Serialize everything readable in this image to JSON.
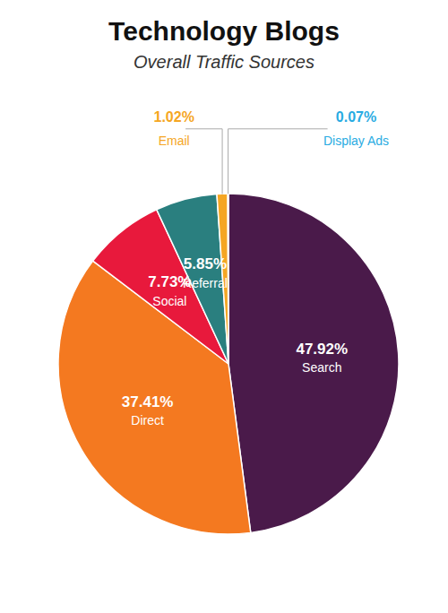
{
  "chart_data": {
    "type": "pie",
    "title": "Technology Blogs",
    "subtitle": "Overall Traffic Sources",
    "categories": [
      "Search",
      "Direct",
      "Social",
      "Referral",
      "Email",
      "Display Ads"
    ],
    "values": [
      47.92,
      37.41,
      7.73,
      5.85,
      1.02,
      0.07
    ],
    "value_labels": [
      "47.92%",
      "37.41%",
      "7.73%",
      "5.85%",
      "1.02%",
      "0.07%"
    ],
    "colors": [
      "#4a1a4a",
      "#f47920",
      "#e8193c",
      "#2a7f7f",
      "#f5a623",
      "#29abe2"
    ],
    "data_labels": true
  }
}
